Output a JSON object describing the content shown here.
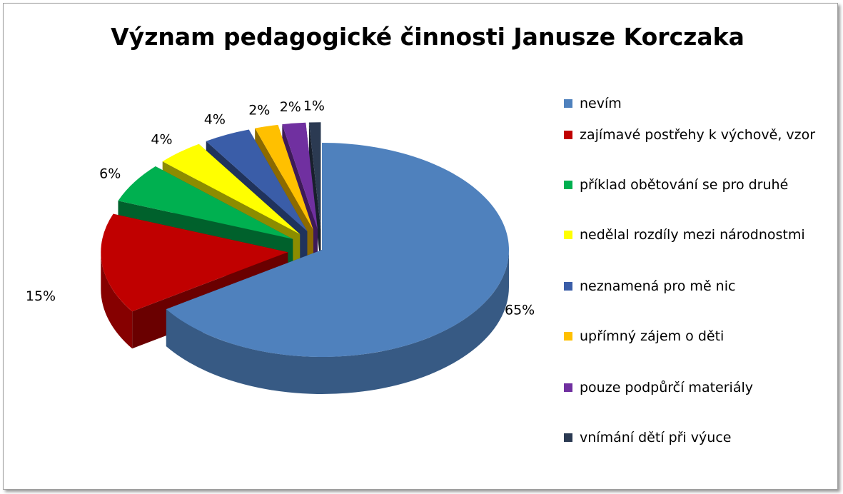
{
  "chart_data": {
    "type": "pie3d",
    "title": "Význam pedagogické činnosti Janusze Korczaka",
    "categories": [
      "nevím",
      "zajímavé postřehy k výchově, vzor",
      "příklad obětování se pro druhé",
      "nedělal rozdíly mezi národnostmi",
      "neznamená pro mě nic",
      "upřímný zájem o děti",
      "pouze podpůrčí materiály",
      "vnímání dětí při výuce"
    ],
    "values": [
      65,
      15,
      6,
      4,
      4,
      2,
      2,
      1
    ],
    "value_labels": [
      "65%",
      "15%",
      "6%",
      "4%",
      "4%",
      "2%",
      "2%",
      "1%"
    ],
    "colors": [
      "#4f81bd",
      "#c00000",
      "#00b050",
      "#ffff00",
      "#3a5da8",
      "#ffc000",
      "#7030a0",
      "#2b3a52"
    ],
    "legend": "right"
  }
}
